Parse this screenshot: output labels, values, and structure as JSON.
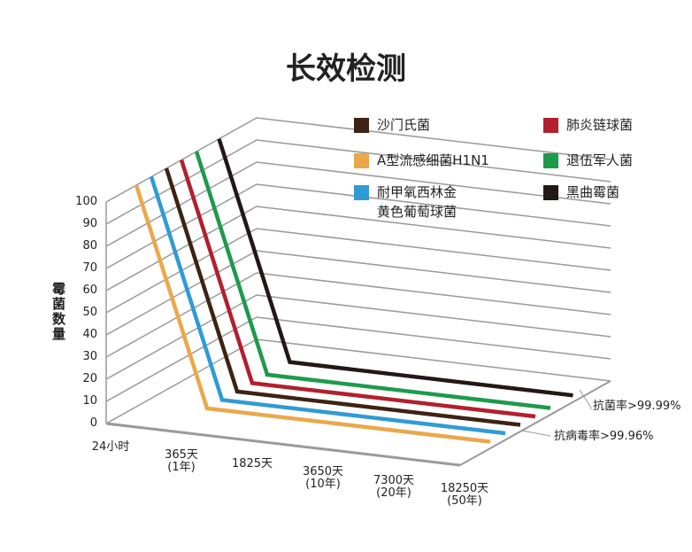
{
  "chart_data": {
    "type": "line3d",
    "title": "长效检测",
    "y_label": "霉菌数量",
    "categories": [
      "24小时",
      "365天\n(1年)",
      "1825天",
      "3650天\n(10年)",
      "7300天\n(20年)",
      "18250天\n(50年)"
    ],
    "series": [
      {
        "name": "沙门氏菌",
        "color": "#3d2314",
        "values": [
          100,
          3,
          3,
          3,
          3,
          3
        ]
      },
      {
        "name": "肺炎链球菌",
        "color": "#b21f2d",
        "values": [
          100,
          3,
          3,
          3,
          3,
          3
        ]
      },
      {
        "name": "A型流感细菌H1N1",
        "color": "#eaa84a",
        "values": [
          100,
          3,
          3,
          3,
          3,
          3
        ]
      },
      {
        "name": "退伍军人菌",
        "color": "#1e9a4b",
        "values": [
          100,
          3,
          3,
          3,
          3,
          3
        ]
      },
      {
        "name": "耐甲氧西林金黄色葡萄球菌",
        "color": "#2f9bd6",
        "values": [
          100,
          3,
          3,
          3,
          3,
          3
        ]
      },
      {
        "name": "黑曲霉菌",
        "color": "#231815",
        "values": [
          100,
          3,
          3,
          3,
          3,
          3
        ]
      }
    ],
    "ylim": [
      0,
      100
    ],
    "yticks": [
      0,
      10,
      20,
      30,
      40,
      50,
      60,
      70,
      80,
      90,
      100
    ],
    "grid": true,
    "annotations": [
      "抗菌率>99.99%",
      "抗病毒率>99.96%"
    ]
  }
}
